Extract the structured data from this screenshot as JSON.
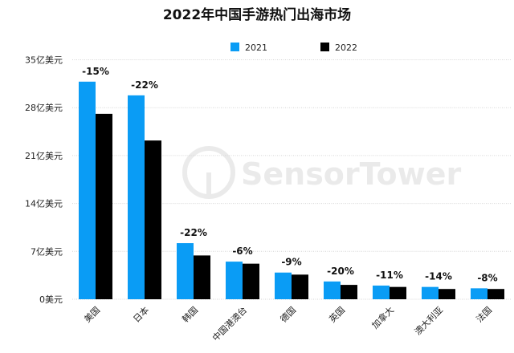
{
  "chart_data": {
    "type": "bar",
    "title": "2022年中国手游热门出海市场",
    "xlabel": "",
    "ylabel": "",
    "categories": [
      "美国",
      "日本",
      "韩国",
      "中国港澳台",
      "德国",
      "英国",
      "加拿大",
      "澳大利亚",
      "法国"
    ],
    "series": [
      {
        "name": "2021",
        "color": "#0a9cf5",
        "values": [
          31.8,
          29.8,
          8.2,
          5.5,
          3.9,
          2.6,
          2.0,
          1.8,
          1.6
        ]
      },
      {
        "name": "2022",
        "color": "#000000",
        "values": [
          27.1,
          23.2,
          6.4,
          5.2,
          3.6,
          2.1,
          1.8,
          1.5,
          1.5
        ]
      }
    ],
    "change_labels": [
      "-15%",
      "-22%",
      "-22%",
      "-6%",
      "-9%",
      "-20%",
      "-11%",
      "-14%",
      "-8%"
    ],
    "ylim": [
      0,
      35
    ],
    "yticks": [
      0,
      7,
      14,
      21,
      28,
      35
    ],
    "ytick_labels": [
      "0美元",
      "7亿美元",
      "14亿美元",
      "21亿美元",
      "28亿美元",
      "35亿美元"
    ],
    "grid": true,
    "legend_position": "top-center",
    "watermark": "SensorTower"
  }
}
